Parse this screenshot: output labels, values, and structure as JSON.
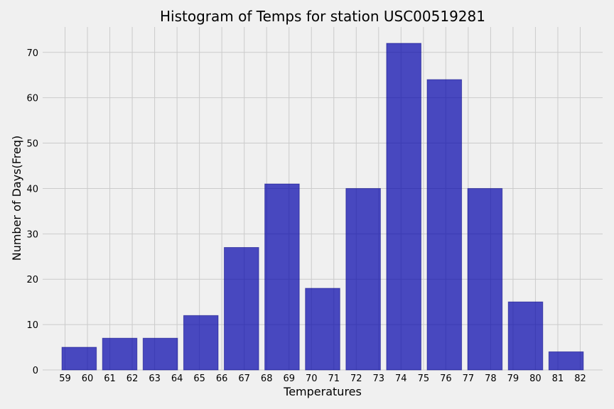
{
  "chart_data": {
    "type": "bar",
    "title": "Histogram of Temps for station USC00519281",
    "xlabel": "Temperatures",
    "ylabel": "Number of Days(Freq)",
    "x_ticks": [
      "59",
      "60",
      "61",
      "62",
      "63",
      "64",
      "65",
      "66",
      "67",
      "68",
      "69",
      "70",
      "71",
      "72",
      "73",
      "74",
      "75",
      "76",
      "77",
      "78",
      "79",
      "80",
      "81",
      "82"
    ],
    "y_ticks": [
      "0",
      "10",
      "20",
      "30",
      "40",
      "50",
      "60",
      "70"
    ],
    "bins": [
      {
        "start": 59.0,
        "end": 61.0,
        "value": 5
      },
      {
        "start": 61.0,
        "end": 63.0,
        "value": 7
      },
      {
        "start": 63.0,
        "end": 65.0,
        "value": 7
      },
      {
        "start": 65.0,
        "end": 67.0,
        "value": 12
      },
      {
        "start": 67.0,
        "end": 69.0,
        "value": 27
      },
      {
        "start": 69.0,
        "end": 71.0,
        "value": 41
      },
      {
        "start": 71.0,
        "end": 73.0,
        "value": 18
      },
      {
        "start": 73.0,
        "end": 75.0,
        "value": 40
      },
      {
        "start": 75.0,
        "end": 77.0,
        "value": 72
      },
      {
        "start": 77.0,
        "end": 79.0,
        "value": 64
      },
      {
        "start": 79.0,
        "end": 81.0,
        "value": 40
      },
      {
        "start": 81.0,
        "end": 83.0,
        "value": 15
      },
      {
        "start": 83.0,
        "end": 85.0,
        "value": 4
      }
    ],
    "xlim": [
      58.2,
      85.8
    ],
    "ylim": [
      0,
      75.6
    ],
    "grid": true,
    "colors": {
      "bar": "#0000aa",
      "background": "#f0f0f0",
      "grid": "#cbcbcb"
    }
  }
}
